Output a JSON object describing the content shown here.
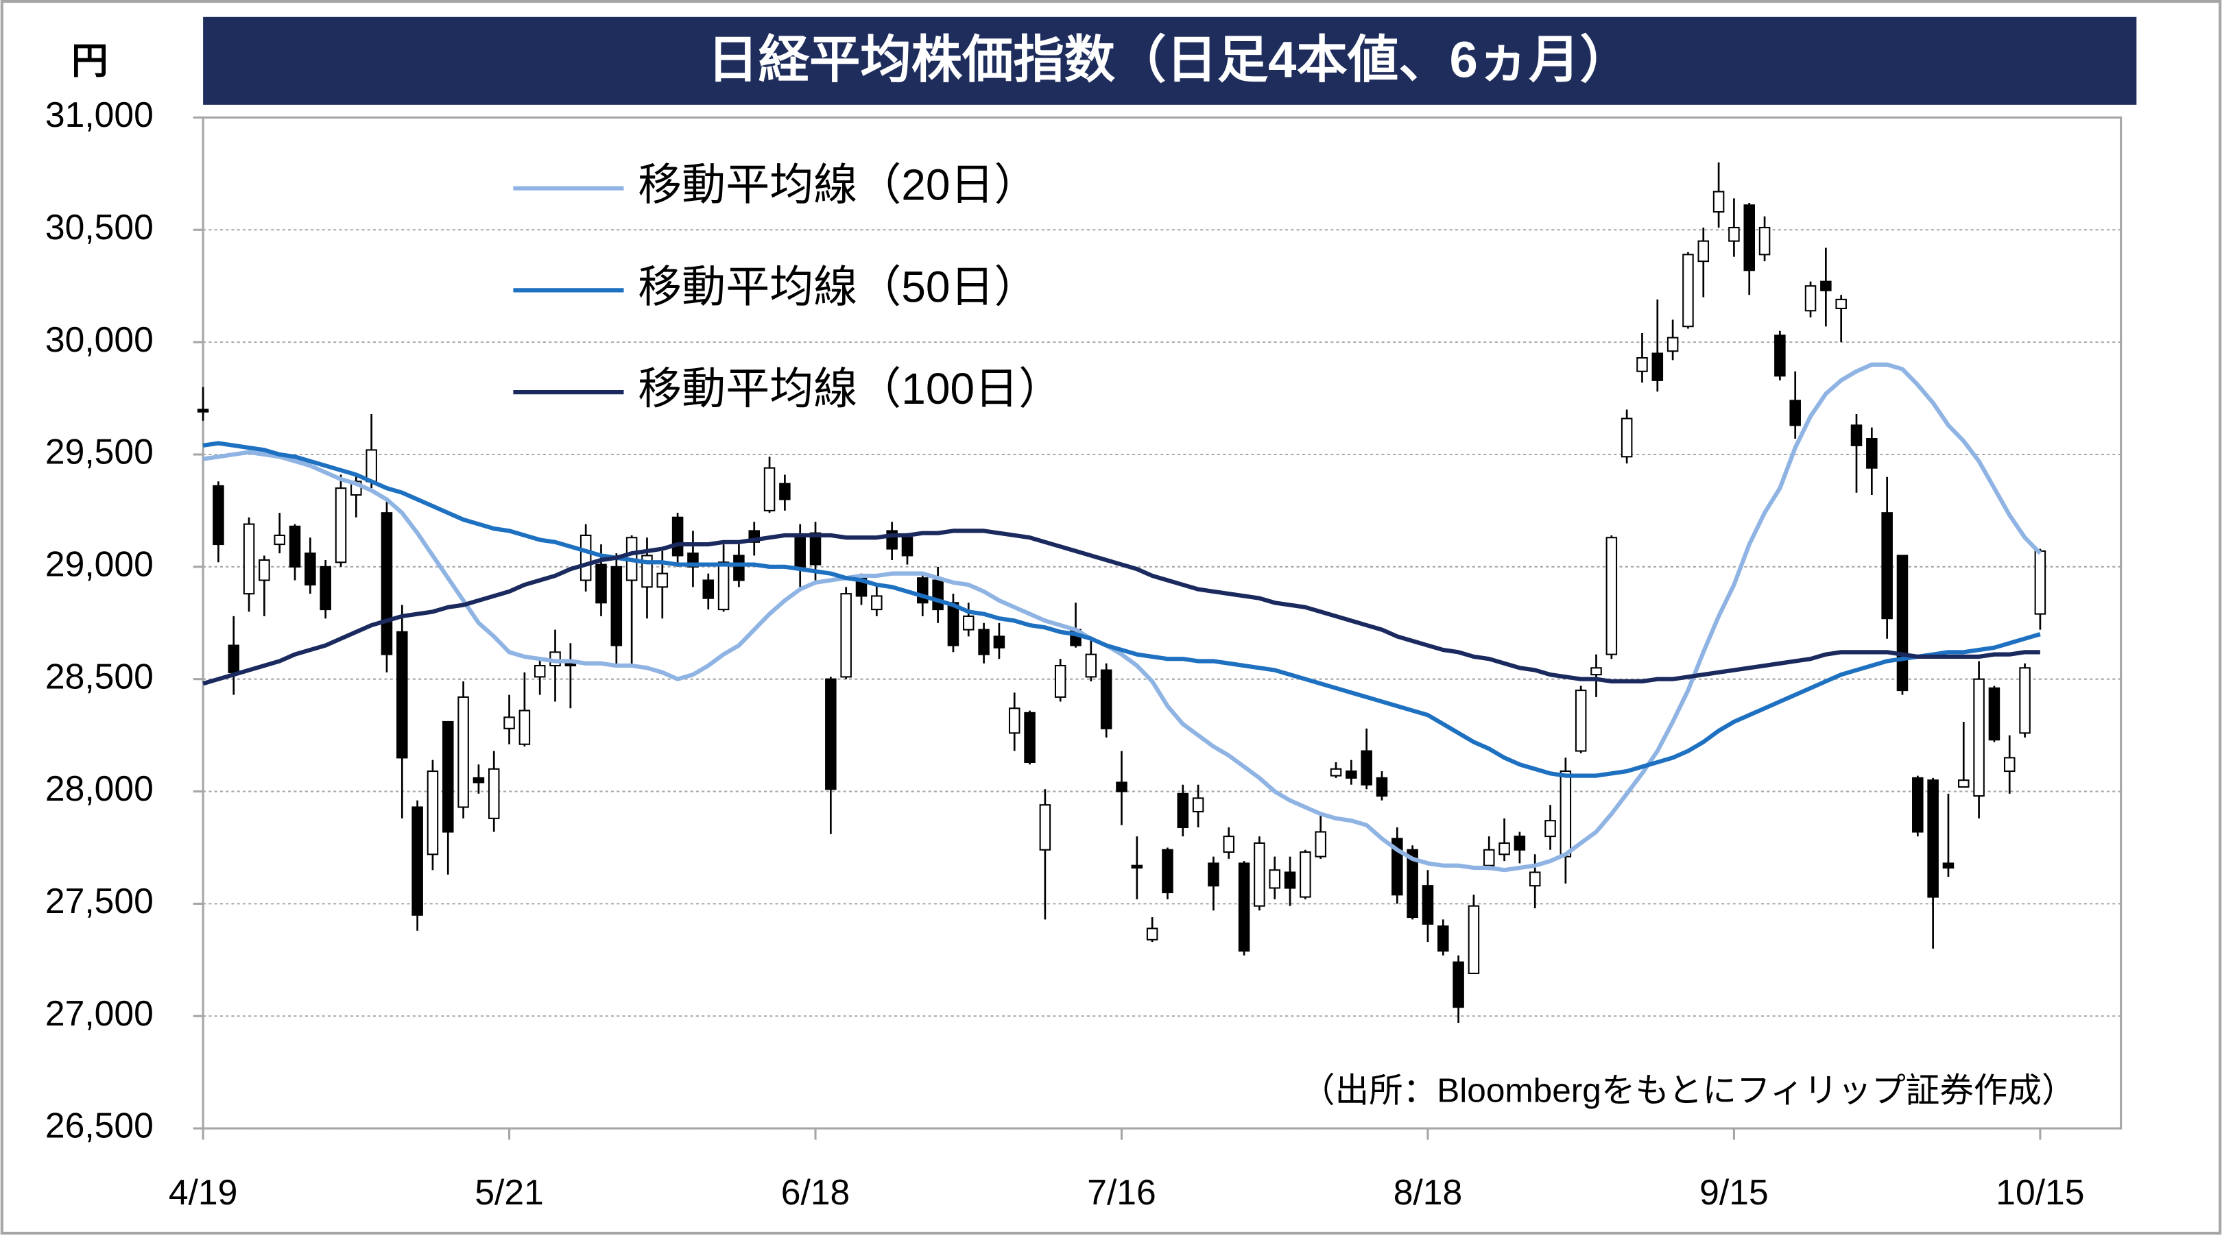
{
  "chart_data": {
    "type": "candlestick",
    "title": "日経平均株価指数（日足4本値、6ヵ月）",
    "y_unit": "円",
    "source": "（出所：Bloombergをもとにフィリップ証券作成）",
    "ylim": [
      26500,
      31000
    ],
    "yticks": [
      {
        "value": 26500,
        "label": "26,500"
      },
      {
        "value": 27000,
        "label": "27,000"
      },
      {
        "value": 27500,
        "label": "27,500"
      },
      {
        "value": 28000,
        "label": "28,000"
      },
      {
        "value": 28500,
        "label": "28,500"
      },
      {
        "value": 29000,
        "label": "29,000"
      },
      {
        "value": 29500,
        "label": "29,500"
      },
      {
        "value": 30000,
        "label": "30,000"
      },
      {
        "value": 30500,
        "label": "30,500"
      },
      {
        "value": 31000,
        "label": "31,000"
      }
    ],
    "grid": true,
    "up_color": "#ffffff",
    "down_color": "#000000",
    "categories": [
      "4/19",
      null,
      null,
      null,
      null,
      null,
      null,
      null,
      null,
      null,
      null,
      null,
      null,
      null,
      null,
      null,
      null,
      null,
      null,
      null,
      "5/21",
      null,
      null,
      null,
      null,
      null,
      null,
      null,
      null,
      null,
      null,
      null,
      null,
      null,
      null,
      null,
      null,
      null,
      null,
      null,
      "6/18",
      null,
      null,
      null,
      null,
      null,
      null,
      null,
      null,
      null,
      null,
      null,
      null,
      null,
      null,
      null,
      null,
      null,
      null,
      null,
      "7/16",
      null,
      null,
      null,
      null,
      null,
      null,
      null,
      null,
      null,
      null,
      null,
      null,
      null,
      null,
      null,
      null,
      null,
      null,
      null,
      "8/18",
      null,
      null,
      null,
      null,
      null,
      null,
      null,
      null,
      null,
      null,
      null,
      null,
      null,
      null,
      null,
      null,
      null,
      null,
      null,
      "9/15",
      null,
      null,
      null,
      null,
      null,
      null,
      null,
      null,
      null,
      null,
      null,
      null,
      null,
      null,
      null,
      null,
      null,
      null,
      null,
      "10/15"
    ],
    "open": [
      29700,
      29360,
      28650,
      28880,
      28940,
      29100,
      29180,
      29060,
      29000,
      29020,
      29320,
      29380,
      29240,
      28710,
      27930,
      27720,
      28310,
      27930,
      28060,
      27880,
      28280,
      28210,
      28510,
      28560,
      28570,
      28940,
      29010,
      29000,
      28940,
      28910,
      28910,
      29220,
      29060,
      28940,
      28810,
      29050,
      29160,
      29250,
      29370,
      29140,
      29150,
      28500,
      28510,
      28950,
      28810,
      29160,
      29130,
      28950,
      28940,
      28840,
      28720,
      28720,
      28690,
      28260,
      28350,
      27740,
      28420,
      28720,
      28510,
      28540,
      28040,
      27670,
      27340,
      27740,
      27990,
      27910,
      27680,
      27730,
      27680,
      27490,
      27570,
      27640,
      27530,
      27710,
      28070,
      28090,
      28180,
      28060,
      27790,
      27740,
      27580,
      27400,
      27240,
      27190,
      27670,
      27720,
      27800,
      27580,
      27800,
      27710,
      28180,
      28520,
      28610,
      29490,
      29870,
      29950,
      29960,
      30070,
      30360,
      30580,
      30450,
      30610,
      30390,
      30030,
      29740,
      30140,
      30270,
      30150,
      29630,
      29570,
      29240,
      29050,
      28060,
      28050,
      27680,
      28020,
      27980,
      28460,
      28090,
      28260,
      28790
    ],
    "high": [
      29800,
      29380,
      28780,
      29220,
      29050,
      29240,
      29190,
      29130,
      29030,
      29410,
      29410,
      29680,
      29290,
      28830,
      27960,
      28140,
      28310,
      28490,
      28120,
      28180,
      28430,
      28530,
      28590,
      28720,
      28660,
      29190,
      29100,
      29060,
      29140,
      29130,
      29070,
      29240,
      29160,
      28970,
      29100,
      29100,
      29200,
      29490,
      29410,
      29190,
      29200,
      28510,
      28910,
      28970,
      28920,
      29200,
      29150,
      28970,
      29000,
      28880,
      28840,
      28750,
      28750,
      28440,
      28360,
      28010,
      28590,
      28840,
      28690,
      28570,
      28180,
      27800,
      27440,
      27750,
      28030,
      28030,
      27710,
      27840,
      27690,
      27800,
      27710,
      27710,
      27740,
      27900,
      28130,
      28140,
      28280,
      28090,
      27840,
      27760,
      27650,
      27430,
      27270,
      27540,
      27800,
      27880,
      27820,
      27720,
      27940,
      28150,
      28470,
      28610,
      29140,
      29700,
      30040,
      30190,
      30100,
      30400,
      30510,
      30800,
      30640,
      30620,
      30560,
      30050,
      29870,
      30270,
      30420,
      30210,
      29680,
      29620,
      29400,
      29050,
      28070,
      28060,
      27990,
      28310,
      28580,
      28470,
      28250,
      28570,
      29080
    ],
    "low": [
      29650,
      29020,
      28430,
      28800,
      28780,
      29060,
      28940,
      28880,
      28770,
      29000,
      29220,
      29350,
      28530,
      27880,
      27380,
      27650,
      27630,
      27880,
      27990,
      27820,
      28210,
      28200,
      28430,
      28400,
      28370,
      28890,
      28780,
      28560,
      28560,
      28770,
      28770,
      29000,
      28910,
      28810,
      28800,
      28910,
      29050,
      29240,
      29250,
      28910,
      28940,
      27810,
      28500,
      28830,
      28780,
      29030,
      29010,
      28780,
      28750,
      28620,
      28690,
      28570,
      28590,
      28180,
      28120,
      27430,
      28400,
      28640,
      28490,
      28240,
      27850,
      27520,
      27330,
      27520,
      27800,
      27840,
      27470,
      27700,
      27270,
      27470,
      27520,
      27490,
      27520,
      27700,
      28060,
      28030,
      28010,
      27960,
      27500,
      27430,
      27330,
      27270,
      26970,
      27190,
      27650,
      27690,
      27680,
      27480,
      27740,
      27590,
      28170,
      28420,
      28590,
      29460,
      29820,
      29780,
      29920,
      30060,
      30200,
      30510,
      30380,
      30210,
      30360,
      29830,
      29570,
      30110,
      30070,
      30000,
      29330,
      29320,
      28680,
      28430,
      27800,
      27300,
      27620,
      28020,
      27880,
      28220,
      27990,
      28240,
      28720
    ],
    "close": [
      29690,
      29100,
      28530,
      29190,
      29030,
      29140,
      29000,
      28920,
      28810,
      29350,
      29380,
      29520,
      28610,
      28150,
      27450,
      28090,
      27820,
      28420,
      28040,
      28100,
      28330,
      28360,
      28560,
      28620,
      28560,
      29140,
      28840,
      28650,
      29130,
      29050,
      28970,
      29050,
      29000,
      28860,
      29020,
      28940,
      29110,
      29440,
      29300,
      29000,
      29010,
      28010,
      28880,
      28870,
      28870,
      29080,
      29050,
      28840,
      28810,
      28650,
      28780,
      28610,
      28640,
      28370,
      28130,
      27940,
      28560,
      28650,
      28610,
      28280,
      28000,
      27660,
      27390,
      27550,
      27840,
      27970,
      27580,
      27800,
      27290,
      27770,
      27650,
      27570,
      27730,
      27820,
      28100,
      28060,
      28030,
      27980,
      27540,
      27440,
      27410,
      27290,
      27040,
      27490,
      27740,
      27770,
      27740,
      27640,
      27870,
      28090,
      28450,
      28550,
      29130,
      29660,
      29930,
      29830,
      30020,
      30390,
      30450,
      30670,
      30510,
      30320,
      30510,
      29850,
      29630,
      30250,
      30230,
      30190,
      29540,
      29440,
      28770,
      28450,
      27820,
      27530,
      27660,
      28050,
      28500,
      28230,
      28150,
      28550,
      29070
    ],
    "series": [
      {
        "name": "移動平均線（20日）",
        "color": "#8fb4e3",
        "values": [
          29480,
          29490,
          29500,
          29510,
          29500,
          29490,
          29470,
          29450,
          29420,
          29390,
          29370,
          29340,
          29300,
          29240,
          29150,
          29050,
          28950,
          28850,
          28750,
          28690,
          28620,
          28600,
          28590,
          28580,
          28580,
          28570,
          28570,
          28560,
          28560,
          28550,
          28530,
          28500,
          28520,
          28560,
          28610,
          28650,
          28720,
          28790,
          28850,
          28900,
          28930,
          28940,
          28950,
          28960,
          28960,
          28970,
          28970,
          28970,
          28950,
          28930,
          28920,
          28890,
          28850,
          28820,
          28790,
          28760,
          28740,
          28720,
          28680,
          28650,
          28610,
          28560,
          28490,
          28380,
          28300,
          28250,
          28200,
          28160,
          28110,
          28060,
          28000,
          27960,
          27930,
          27900,
          27880,
          27870,
          27850,
          27790,
          27740,
          27700,
          27680,
          27670,
          27670,
          27660,
          27660,
          27650,
          27660,
          27670,
          27690,
          27720,
          27770,
          27820,
          27900,
          27990,
          28080,
          28180,
          28310,
          28450,
          28620,
          28780,
          28920,
          29100,
          29240,
          29350,
          29530,
          29670,
          29770,
          29830,
          29870,
          29900,
          29900,
          29880,
          29810,
          29730,
          29630,
          29560,
          29470,
          29350,
          29230,
          29130,
          29060
        ]
      },
      {
        "name": "移動平均線（50日）",
        "color": "#1e70c0",
        "values": [
          29540,
          29550,
          29540,
          29530,
          29520,
          29500,
          29490,
          29470,
          29450,
          29430,
          29410,
          29380,
          29350,
          29330,
          29300,
          29270,
          29240,
          29210,
          29190,
          29170,
          29160,
          29140,
          29120,
          29110,
          29090,
          29070,
          29050,
          29040,
          29030,
          29020,
          29020,
          29010,
          29010,
          29010,
          29010,
          29010,
          29010,
          29000,
          29000,
          28990,
          28980,
          28970,
          28950,
          28940,
          28920,
          28910,
          28890,
          28870,
          28850,
          28830,
          28800,
          28790,
          28770,
          28760,
          28740,
          28730,
          28710,
          28700,
          28680,
          28650,
          28630,
          28610,
          28600,
          28590,
          28590,
          28580,
          28580,
          28570,
          28560,
          28550,
          28540,
          28520,
          28500,
          28480,
          28460,
          28440,
          28420,
          28400,
          28380,
          28360,
          28340,
          28300,
          28260,
          28220,
          28190,
          28150,
          28120,
          28100,
          28080,
          28070,
          28070,
          28070,
          28080,
          28090,
          28110,
          28130,
          28150,
          28180,
          28220,
          28270,
          28310,
          28340,
          28370,
          28400,
          28430,
          28460,
          28490,
          28520,
          28540,
          28560,
          28580,
          28590,
          28600,
          28610,
          28620,
          28620,
          28630,
          28640,
          28660,
          28680,
          28700
        ]
      },
      {
        "name": "移動平均線（100日）",
        "color": "#1b2a5e",
        "values": [
          28480,
          28500,
          28520,
          28540,
          28560,
          28580,
          28610,
          28630,
          28650,
          28680,
          28710,
          28740,
          28760,
          28780,
          28790,
          28800,
          28820,
          28830,
          28850,
          28870,
          28890,
          28920,
          28940,
          28960,
          28990,
          29010,
          29030,
          29040,
          29060,
          29070,
          29080,
          29100,
          29100,
          29100,
          29110,
          29110,
          29120,
          29130,
          29140,
          29140,
          29140,
          29140,
          29130,
          29130,
          29130,
          29140,
          29140,
          29150,
          29150,
          29160,
          29160,
          29160,
          29150,
          29140,
          29130,
          29110,
          29090,
          29070,
          29050,
          29030,
          29010,
          28990,
          28960,
          28940,
          28920,
          28900,
          28890,
          28880,
          28870,
          28860,
          28840,
          28830,
          28820,
          28800,
          28780,
          28760,
          28740,
          28720,
          28690,
          28670,
          28650,
          28630,
          28620,
          28600,
          28590,
          28570,
          28550,
          28540,
          28520,
          28510,
          28500,
          28500,
          28490,
          28490,
          28490,
          28500,
          28500,
          28510,
          28520,
          28530,
          28540,
          28550,
          28560,
          28570,
          28580,
          28590,
          28610,
          28620,
          28620,
          28620,
          28620,
          28610,
          28600,
          28600,
          28600,
          28600,
          28600,
          28610,
          28610,
          28620,
          28620
        ]
      }
    ]
  }
}
